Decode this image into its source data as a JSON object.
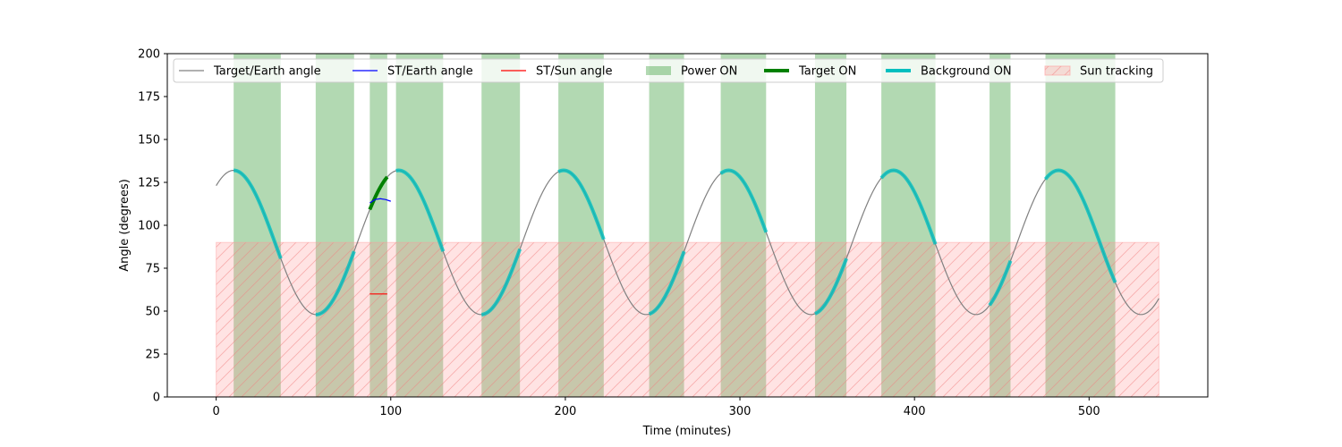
{
  "chart_data": {
    "type": "line",
    "xlabel": "Time (minutes)",
    "ylabel": "Angle (degrees)",
    "xlim": [
      -28,
      568
    ],
    "ylim": [
      0,
      200
    ],
    "x_ticks": [
      "0",
      "100",
      "200",
      "300",
      "400",
      "500"
    ],
    "y_ticks": [
      "0",
      "25",
      "50",
      "75",
      "100",
      "125",
      "150",
      "175",
      "200"
    ],
    "grid": false,
    "legend_position": "top",
    "legend": [
      {
        "label": "Target/Earth angle",
        "kind": "line-thin",
        "color": "#808080"
      },
      {
        "label": "ST/Earth angle",
        "kind": "line-thin",
        "color": "#0000ff"
      },
      {
        "label": "ST/Sun angle",
        "kind": "line-thin",
        "color": "#ff0000"
      },
      {
        "label": "Power ON",
        "kind": "patch",
        "color": "#008000"
      },
      {
        "label": "Target ON",
        "kind": "line-thick",
        "color": "#008000"
      },
      {
        "label": "Background ON",
        "kind": "line-thick",
        "color": "#00bfbf"
      },
      {
        "label": "Sun tracking",
        "kind": "hatch",
        "color": "#ff9999"
      }
    ],
    "target_earth_angle": {
      "name": "Target/Earth angle",
      "center": 90,
      "amplitude": 42,
      "period": 94.5,
      "peak_at": 10,
      "x_range": [
        0,
        540
      ]
    },
    "st_earth_angle": {
      "name": "ST/Earth angle",
      "x": [
        88,
        91,
        94,
        97,
        100
      ],
      "y": [
        113,
        115,
        115.5,
        115,
        114
      ]
    },
    "st_sun_angle": {
      "name": "ST/Sun angle",
      "x": [
        88,
        98
      ],
      "y": [
        60,
        60
      ]
    },
    "power_on": [
      [
        10,
        37
      ],
      [
        57,
        79
      ],
      [
        88,
        98
      ],
      [
        103,
        130
      ],
      [
        152,
        174
      ],
      [
        196,
        222
      ],
      [
        248,
        268
      ],
      [
        289,
        315
      ],
      [
        343,
        361
      ],
      [
        381,
        412
      ],
      [
        443,
        455
      ],
      [
        475,
        515
      ]
    ],
    "target_on": [
      [
        88,
        98
      ]
    ],
    "background_on": [
      [
        10,
        37
      ],
      [
        57,
        79
      ],
      [
        103,
        130
      ],
      [
        152,
        174
      ],
      [
        196,
        222
      ],
      [
        248,
        268
      ],
      [
        289,
        315
      ],
      [
        343,
        361
      ],
      [
        381,
        412
      ],
      [
        443,
        455
      ],
      [
        475,
        515
      ]
    ],
    "sun_tracking": {
      "x_range": [
        0,
        540
      ],
      "y_range": [
        0,
        90
      ]
    }
  }
}
